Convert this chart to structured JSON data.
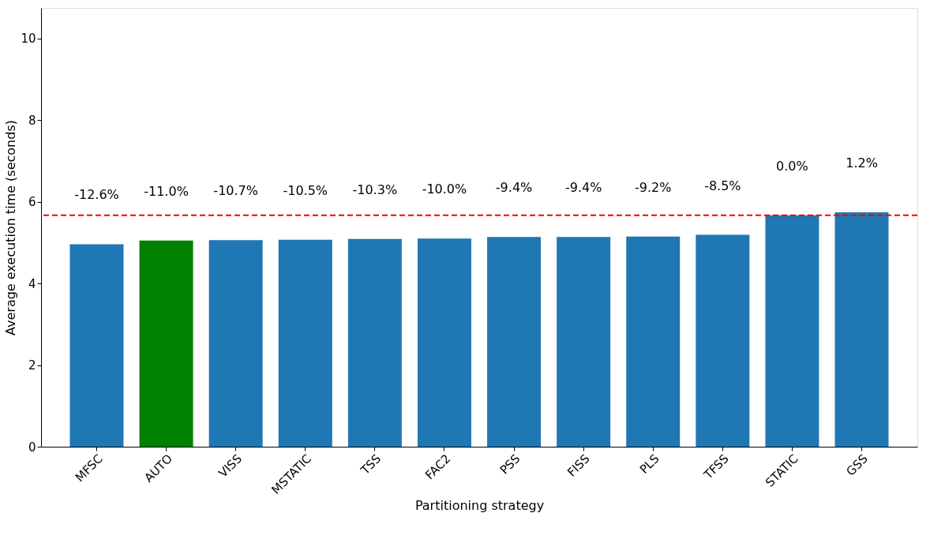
{
  "chart_data": {
    "type": "bar",
    "xlabel": "Partitioning strategy",
    "ylabel": "Average execution time (seconds)",
    "categories": [
      "MFSC",
      "AUTO",
      "VISS",
      "MSTATIC",
      "TSS",
      "FAC2",
      "PSS",
      "FISS",
      "PLS",
      "TFSS",
      "STATIC",
      "GSS"
    ],
    "values": [
      4.96,
      5.05,
      5.06,
      5.07,
      5.09,
      5.1,
      5.14,
      5.14,
      5.15,
      5.19,
      5.67,
      5.74
    ],
    "colors": [
      "#1f77b4",
      "#008000",
      "#1f77b4",
      "#1f77b4",
      "#1f77b4",
      "#1f77b4",
      "#1f77b4",
      "#1f77b4",
      "#1f77b4",
      "#1f77b4",
      "#1f77b4",
      "#1f77b4"
    ],
    "annotations": [
      "-12.6%",
      "-11.0%",
      "-10.7%",
      "-10.5%",
      "-10.3%",
      "-10.0%",
      "-9.4%",
      "-9.4%",
      "-9.2%",
      "-8.5%",
      "0.0%",
      "1.2%"
    ],
    "ylim": [
      0,
      10.75
    ],
    "yticks": [
      0,
      2,
      4,
      6,
      8,
      10
    ],
    "grid": false,
    "ref_lines": [
      {
        "axis": "y",
        "value": 5.67,
        "color": "#ff0000",
        "line_style": "dashed"
      }
    ]
  }
}
